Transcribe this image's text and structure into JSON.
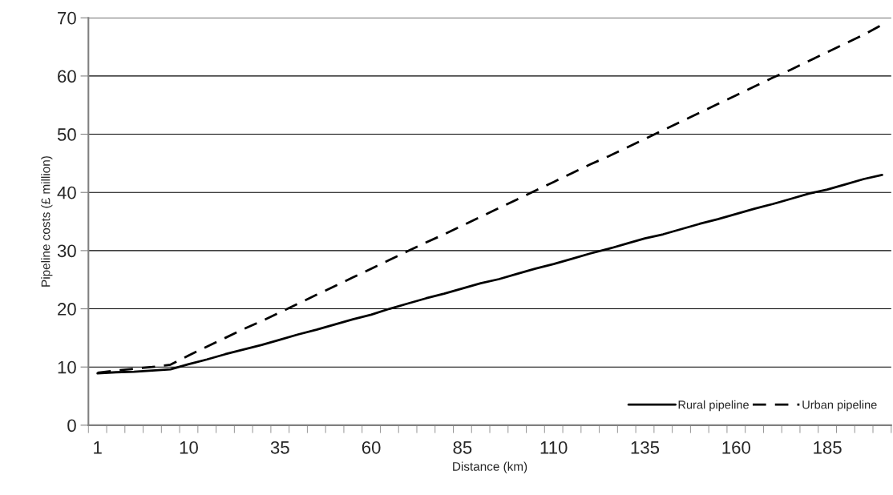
{
  "chart_data": {
    "type": "line",
    "xlabel": "Distance (km)",
    "ylabel": "Pipeline costs (£ million)",
    "categories": [
      "1",
      null,
      null,
      null,
      null,
      "10",
      null,
      null,
      null,
      null,
      "35",
      null,
      null,
      null,
      null,
      "60",
      null,
      null,
      null,
      null,
      "85",
      null,
      null,
      null,
      null,
      "110",
      null,
      null,
      null,
      null,
      "135",
      null,
      null,
      null,
      null,
      "160",
      null,
      null,
      null,
      null,
      "185",
      null,
      null,
      null
    ],
    "series": [
      {
        "name": "Rural pipeline",
        "color": "#000000",
        "line_style": "solid",
        "values": [
          8.9,
          9.1,
          9.2,
          9.4,
          9.6,
          10.5,
          11.3,
          12.2,
          13.0,
          13.8,
          14.7,
          15.6,
          16.4,
          17.3,
          18.2,
          19.0,
          20.0,
          20.9,
          21.8,
          22.6,
          23.5,
          24.4,
          25.1,
          26.0,
          26.9,
          27.7,
          28.6,
          29.5,
          30.3,
          31.2,
          32.1,
          32.8,
          33.7,
          34.6,
          35.4,
          36.3,
          37.2,
          38.0,
          38.9,
          39.8,
          40.5,
          41.4,
          42.3,
          43.0
        ]
      },
      {
        "name": "Urban pipeline",
        "color": "#000000",
        "line_style": "dashed",
        "values": [
          9.0,
          9.4,
          9.7,
          10.0,
          10.4,
          12.0,
          13.5,
          15.0,
          16.5,
          17.9,
          19.4,
          20.9,
          22.4,
          23.9,
          25.4,
          26.9,
          28.4,
          29.9,
          31.4,
          32.8,
          34.3,
          35.8,
          37.3,
          38.8,
          40.3,
          41.8,
          43.3,
          44.8,
          46.2,
          47.7,
          49.2,
          50.7,
          52.2,
          53.7,
          55.2,
          56.7,
          58.2,
          59.7,
          61.1,
          62.6,
          64.1,
          65.6,
          67.1,
          68.8
        ]
      }
    ],
    "ylim": [
      0,
      70
    ],
    "yticks": [
      0,
      10,
      20,
      30,
      40,
      50,
      60,
      70
    ],
    "grid": "y",
    "legend": "bottom right",
    "marker": "none"
  }
}
